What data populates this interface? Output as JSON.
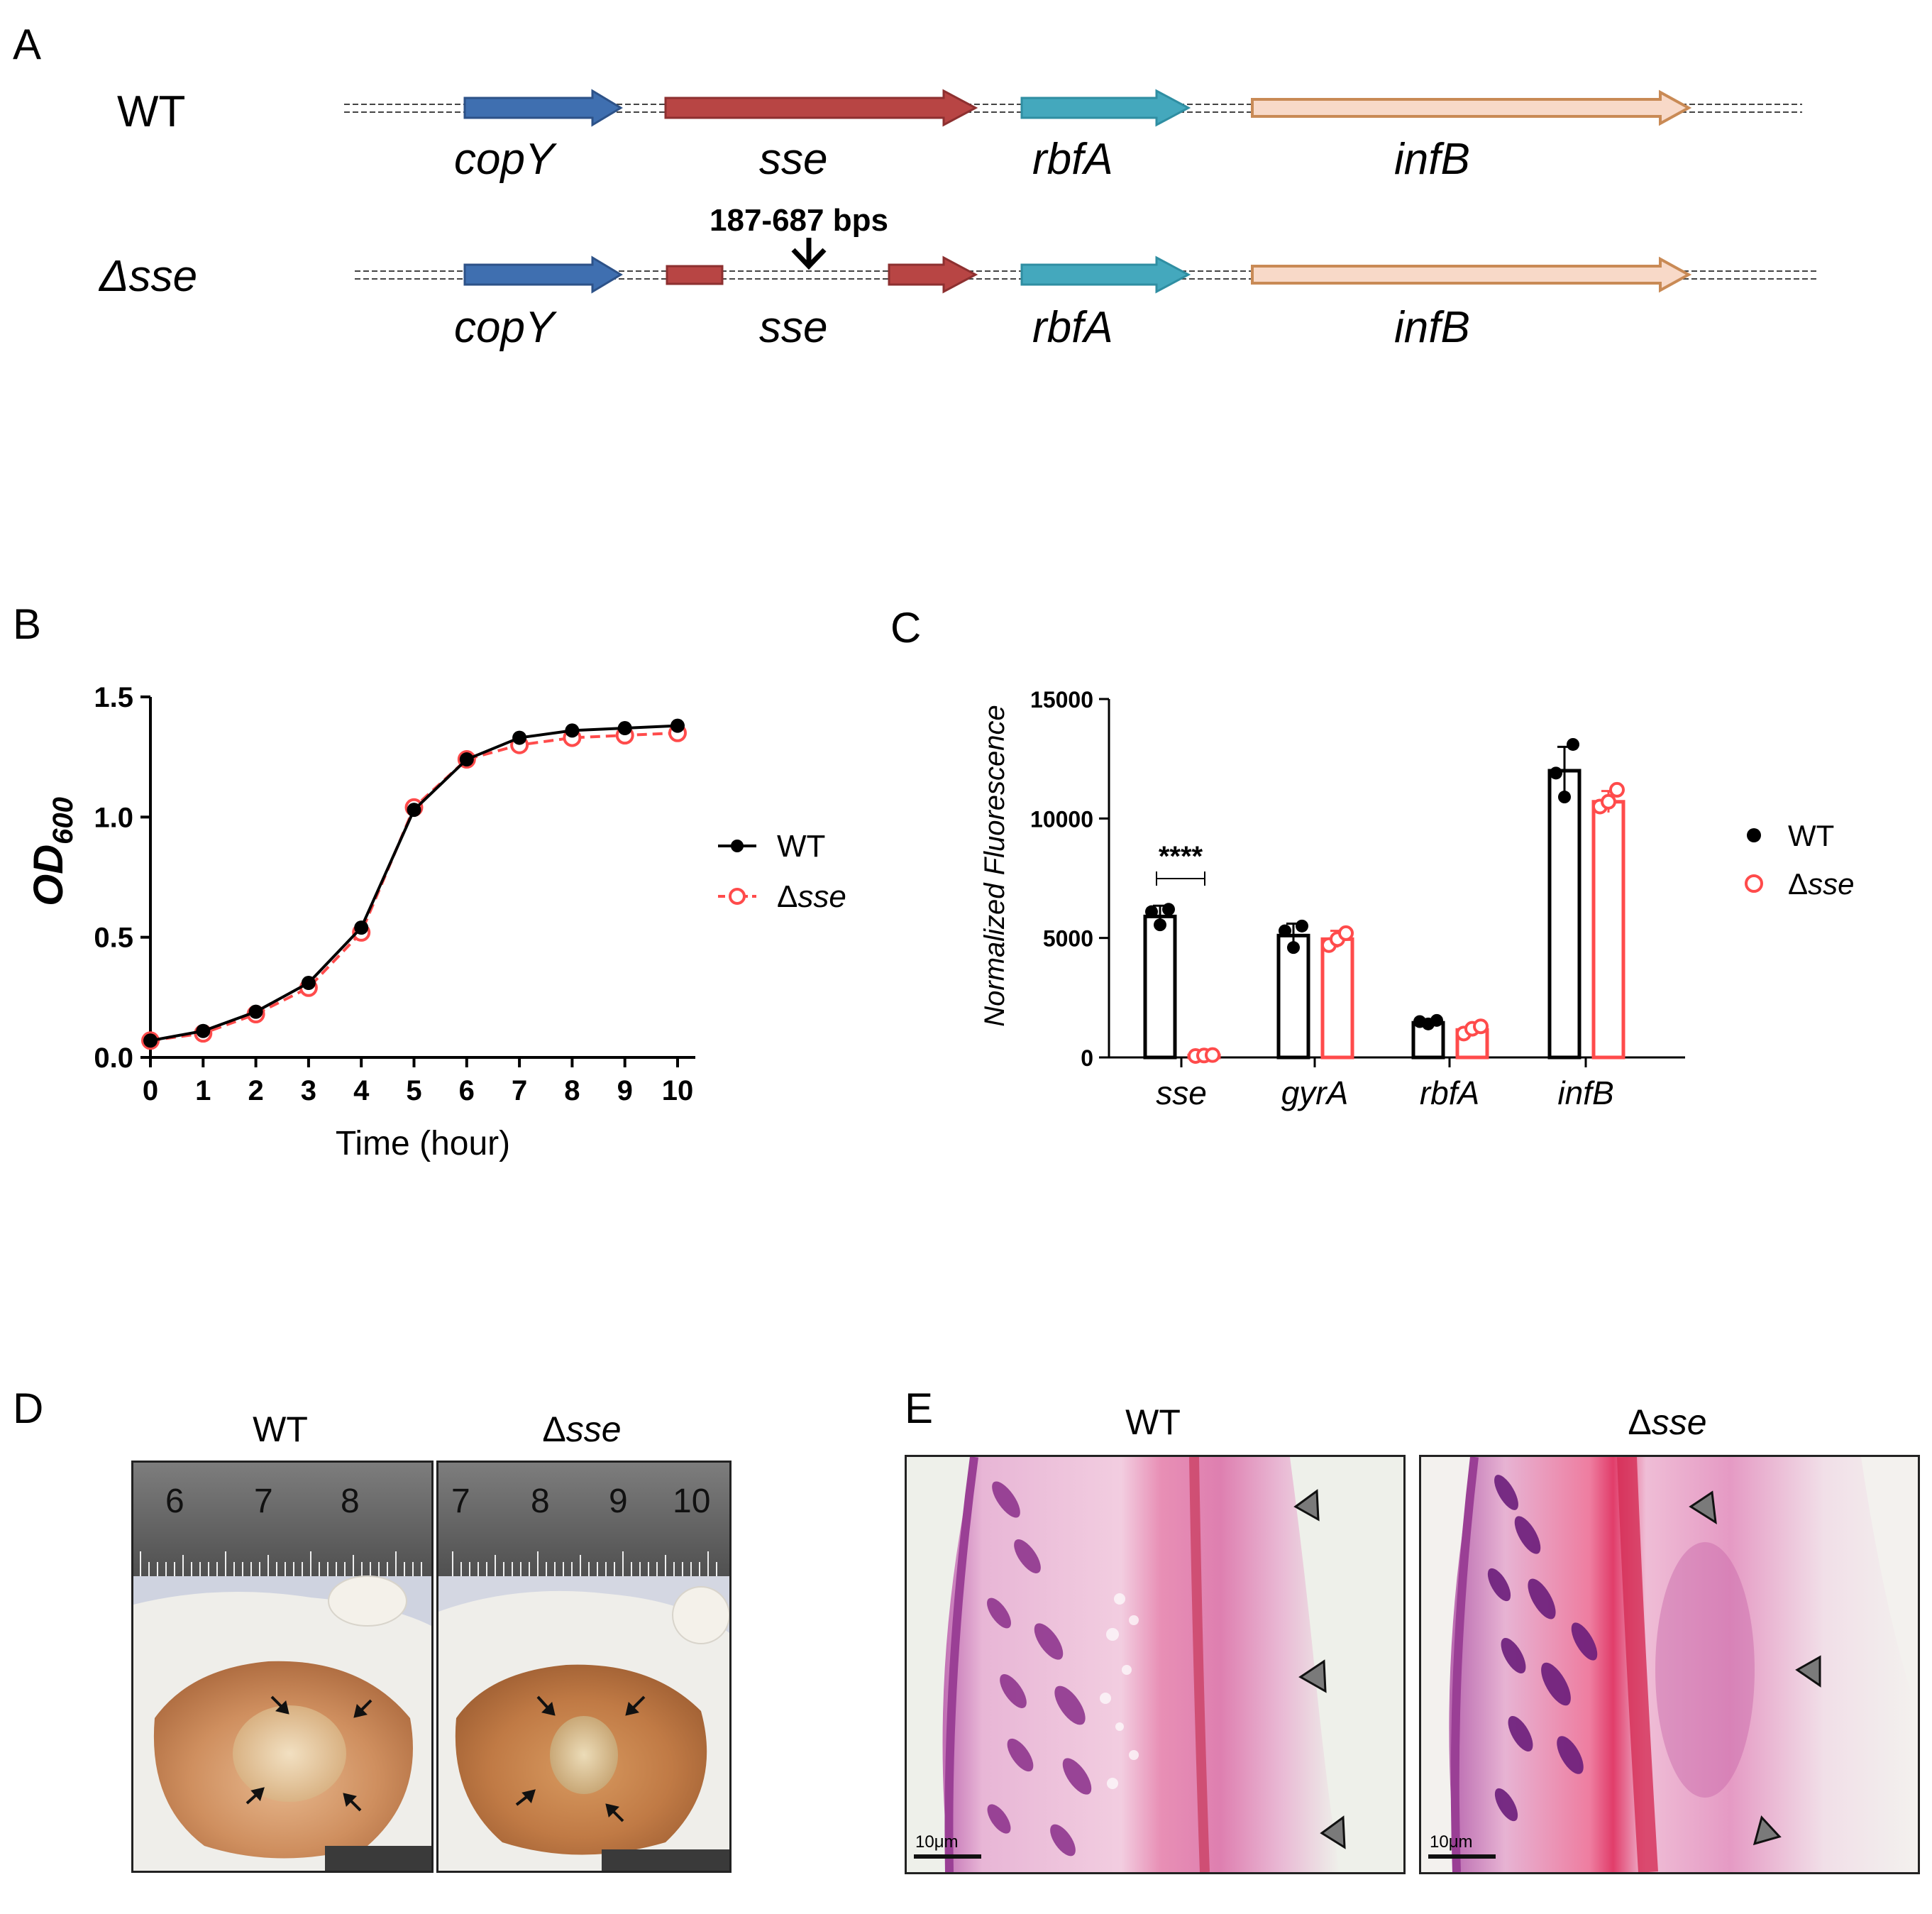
{
  "panels": {
    "a": {
      "letter": "A"
    },
    "b": {
      "letter": "B"
    },
    "c": {
      "letter": "C"
    },
    "d": {
      "letter": "D"
    },
    "e": {
      "letter": "E"
    }
  },
  "gene_map": {
    "wt_label": "WT",
    "mut_label": "Δsse",
    "deletion_label": "187-687 bps",
    "genes": [
      "copY",
      "sse",
      "rbfA",
      "infB"
    ],
    "colors": {
      "copY": "#3f6fb0",
      "sse": "#b84544",
      "rbfA": "#44a8bd",
      "infB_fill": "#f8d9c8",
      "infB_stroke": "#c98a55"
    }
  },
  "panel_d": {
    "title_wt": "WT",
    "title_mut_prefix": "Δ",
    "title_mut_italic": "sse",
    "ruler_wt": [
      "6",
      "7",
      "8"
    ],
    "ruler_mut": [
      "7",
      "8",
      "9",
      "10"
    ]
  },
  "panel_e": {
    "title_wt": "WT",
    "title_mut_prefix": "Δ",
    "title_mut_italic": "sse",
    "scalebar_wt": "10μm",
    "scalebar_mut": "10μm"
  },
  "chart_data": [
    {
      "type": "line",
      "xlabel": "Time (hour)",
      "ylabel": "OD",
      "ylabel_sub": "600",
      "xlim": [
        0,
        10
      ],
      "ylim": [
        0,
        1.5
      ],
      "xticks": [
        "0",
        "1",
        "2",
        "3",
        "4",
        "5",
        "6",
        "7",
        "8",
        "9",
        "10"
      ],
      "yticks": [
        "0.0",
        "0.5",
        "1.0",
        "1.5"
      ],
      "x": [
        0,
        1,
        2,
        3,
        4,
        5,
        6,
        7,
        8,
        9,
        10
      ],
      "series": [
        {
          "name": "WT",
          "color": "#000000",
          "style": "solid-filled",
          "values": [
            0.07,
            0.11,
            0.19,
            0.31,
            0.54,
            1.03,
            1.24,
            1.33,
            1.36,
            1.37,
            1.38
          ]
        },
        {
          "name": "Δsse",
          "name_prefix": "Δ",
          "name_italic": "sse",
          "color": "#ff4b4b",
          "style": "dashed-open",
          "values": [
            0.07,
            0.1,
            0.18,
            0.29,
            0.52,
            1.04,
            1.24,
            1.3,
            1.33,
            1.34,
            1.35
          ]
        }
      ],
      "legend": "right"
    },
    {
      "type": "bar",
      "ylabel": "Normalized Fluorescence",
      "ylim": [
        0,
        15000
      ],
      "yticks": [
        "0",
        "5000",
        "10000",
        "15000"
      ],
      "categories": [
        "sse",
        "gyrA",
        "rbfA",
        "infB"
      ],
      "series": [
        {
          "name": "WT",
          "color": "#000000",
          "values": [
            5900,
            5100,
            1450,
            12000
          ],
          "error": [
            450,
            500,
            150,
            1000
          ],
          "points": [
            [
              6100,
              5550,
              6200
            ],
            [
              5300,
              4600,
              5500
            ],
            [
              1500,
              1400,
              1550
            ],
            [
              11900,
              10900,
              13100
            ]
          ]
        },
        {
          "name": "Δsse",
          "name_prefix": "Δ",
          "name_italic": "sse",
          "color": "#ff4b4b",
          "values": [
            80,
            4950,
            1150,
            10700
          ],
          "error": [
            20,
            350,
            150,
            450
          ],
          "points": [
            [
              60,
              80,
              100
            ],
            [
              4700,
              4950,
              5200
            ],
            [
              1000,
              1200,
              1300
            ],
            [
              10500,
              10700,
              11200
            ]
          ]
        }
      ],
      "annotation": "****",
      "legend": "right"
    }
  ]
}
